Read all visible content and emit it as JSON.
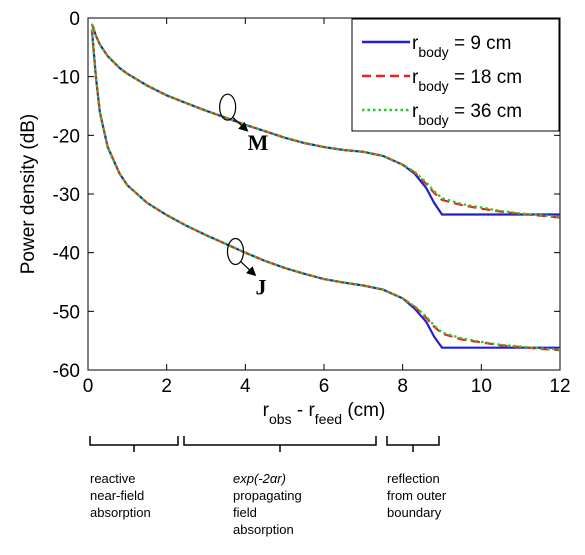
{
  "chart_data": {
    "type": "line",
    "xlabel_parts": [
      "r",
      "obs",
      " - r",
      "feed",
      " (cm)"
    ],
    "ylabel": "Power density (dB)",
    "xlim": [
      0,
      12
    ],
    "ylim": [
      -60,
      0
    ],
    "xticks": [
      0,
      2,
      4,
      6,
      8,
      10,
      12
    ],
    "yticks": [
      0,
      -10,
      -20,
      -30,
      -40,
      -50,
      -60
    ],
    "grid": false,
    "legend_position": "top-right",
    "legend": [
      {
        "prefix": "r",
        "sub": "body",
        "suffix": " = 9 cm",
        "color": "#1f1fd6",
        "style": "solid"
      },
      {
        "prefix": "r",
        "sub": "body",
        "suffix": " = 18 cm",
        "color": "#e8231e",
        "style": "dashed"
      },
      {
        "prefix": "r",
        "sub": "body",
        "suffix": " = 36 cm",
        "color": "#22cc22",
        "style": "dotted"
      }
    ],
    "curve_labels": [
      "M",
      "J"
    ],
    "series": [
      {
        "group": "M",
        "color": "#1f1fd6",
        "style": "solid",
        "x": [
          0.1,
          0.2,
          0.3,
          0.5,
          0.8,
          1,
          1.5,
          2,
          2.5,
          3,
          3.5,
          4,
          4.5,
          5,
          5.5,
          6,
          6.5,
          7,
          7.5,
          8,
          8.3,
          8.6,
          8.8,
          9,
          9.5,
          10,
          10.5,
          11,
          11.5,
          12
        ],
        "y": [
          -1,
          -3,
          -4.5,
          -6.5,
          -8.5,
          -9.5,
          -11.5,
          -13.2,
          -14.5,
          -15.8,
          -17,
          -18.2,
          -19.3,
          -20.4,
          -21.3,
          -22,
          -22.5,
          -22.8,
          -23.5,
          -25,
          -26.5,
          -29,
          -31.5,
          -33.5,
          -33.5,
          -33.5,
          -33.5,
          -33.5,
          -33.5,
          -33.5
        ]
      },
      {
        "group": "M",
        "color": "#e8231e",
        "style": "dashed",
        "x": [
          0.1,
          0.2,
          0.3,
          0.5,
          0.8,
          1,
          1.5,
          2,
          2.5,
          3,
          3.5,
          4,
          4.5,
          5,
          5.5,
          6,
          6.5,
          7,
          7.5,
          8,
          8.3,
          8.6,
          8.8,
          9,
          9.5,
          10,
          10.5,
          11,
          11.5,
          12
        ],
        "y": [
          -1,
          -3,
          -4.5,
          -6.5,
          -8.5,
          -9.5,
          -11.5,
          -13.2,
          -14.5,
          -15.8,
          -17,
          -18.2,
          -19.3,
          -20.4,
          -21.3,
          -22,
          -22.5,
          -22.8,
          -23.5,
          -25,
          -26.3,
          -28.3,
          -29.8,
          -31,
          -31.9,
          -32.5,
          -33,
          -33.4,
          -33.7,
          -34
        ]
      },
      {
        "group": "M",
        "color": "#22cc22",
        "style": "dotted",
        "x": [
          0.1,
          0.2,
          0.3,
          0.5,
          0.8,
          1,
          1.5,
          2,
          2.5,
          3,
          3.5,
          4,
          4.5,
          5,
          5.5,
          6,
          6.5,
          7,
          7.5,
          8,
          8.3,
          8.6,
          8.8,
          9,
          9.5,
          10,
          10.5,
          11,
          11.5,
          12
        ],
        "y": [
          -1,
          -3,
          -4.5,
          -6.5,
          -8.5,
          -9.5,
          -11.5,
          -13.2,
          -14.5,
          -15.8,
          -17,
          -18.2,
          -19.3,
          -20.4,
          -21.3,
          -22,
          -22.5,
          -22.8,
          -23.5,
          -25,
          -26.2,
          -28,
          -29.5,
          -30.7,
          -31.7,
          -32.3,
          -32.9,
          -33.3,
          -33.6,
          -33.9
        ]
      },
      {
        "group": "J",
        "color": "#1f1fd6",
        "style": "solid",
        "x": [
          0.1,
          0.2,
          0.3,
          0.5,
          0.8,
          1,
          1.5,
          2,
          2.5,
          3,
          3.5,
          4,
          4.5,
          5,
          5.5,
          6,
          6.5,
          7,
          7.5,
          8,
          8.3,
          8.6,
          8.8,
          9,
          9.5,
          10,
          10.5,
          11,
          11.5,
          12
        ],
        "y": [
          -2,
          -10,
          -16,
          -22,
          -26.5,
          -28.5,
          -31.5,
          -33.6,
          -35.4,
          -37,
          -38.5,
          -40,
          -41.4,
          -42.6,
          -43.6,
          -44.5,
          -45.1,
          -45.6,
          -46.3,
          -47.8,
          -49.5,
          -51.8,
          -54.3,
          -56.2,
          -56.2,
          -56.2,
          -56.2,
          -56.2,
          -56.2,
          -56.2
        ]
      },
      {
        "group": "J",
        "color": "#e8231e",
        "style": "dashed",
        "x": [
          0.1,
          0.2,
          0.3,
          0.5,
          0.8,
          1,
          1.5,
          2,
          2.5,
          3,
          3.5,
          4,
          4.5,
          5,
          5.5,
          6,
          6.5,
          7,
          7.5,
          8,
          8.3,
          8.6,
          8.8,
          9,
          9.5,
          10,
          10.5,
          11,
          11.5,
          12
        ],
        "y": [
          -2,
          -10,
          -16,
          -22,
          -26.5,
          -28.5,
          -31.5,
          -33.6,
          -35.4,
          -37,
          -38.5,
          -40,
          -41.4,
          -42.6,
          -43.6,
          -44.5,
          -45.1,
          -45.6,
          -46.3,
          -47.8,
          -49.2,
          -51.1,
          -52.6,
          -53.8,
          -54.8,
          -55.3,
          -55.8,
          -56.1,
          -56.4,
          -56.6
        ]
      },
      {
        "group": "J",
        "color": "#22cc22",
        "style": "dotted",
        "x": [
          0.1,
          0.2,
          0.3,
          0.5,
          0.8,
          1,
          1.5,
          2,
          2.5,
          3,
          3.5,
          4,
          4.5,
          5,
          5.5,
          6,
          6.5,
          7,
          7.5,
          8,
          8.3,
          8.6,
          8.8,
          9,
          9.5,
          10,
          10.5,
          11,
          11.5,
          12
        ],
        "y": [
          -2,
          -10,
          -16,
          -22,
          -26.5,
          -28.5,
          -31.5,
          -33.6,
          -35.4,
          -37,
          -38.5,
          -40,
          -41.4,
          -42.6,
          -43.6,
          -44.5,
          -45.1,
          -45.6,
          -46.3,
          -47.8,
          -49.1,
          -50.9,
          -52.4,
          -53.6,
          -54.6,
          -55.2,
          -55.7,
          -56,
          -56.3,
          -56.5
        ]
      }
    ]
  },
  "annotations": {
    "reactive": [
      "reactive",
      "near-field",
      "absorption"
    ],
    "propagating_expr": "exp(-2αr)",
    "propagating": [
      "propagating",
      "field",
      "absorption"
    ],
    "reflection": [
      "reflection",
      "from outer",
      "boundary"
    ]
  }
}
